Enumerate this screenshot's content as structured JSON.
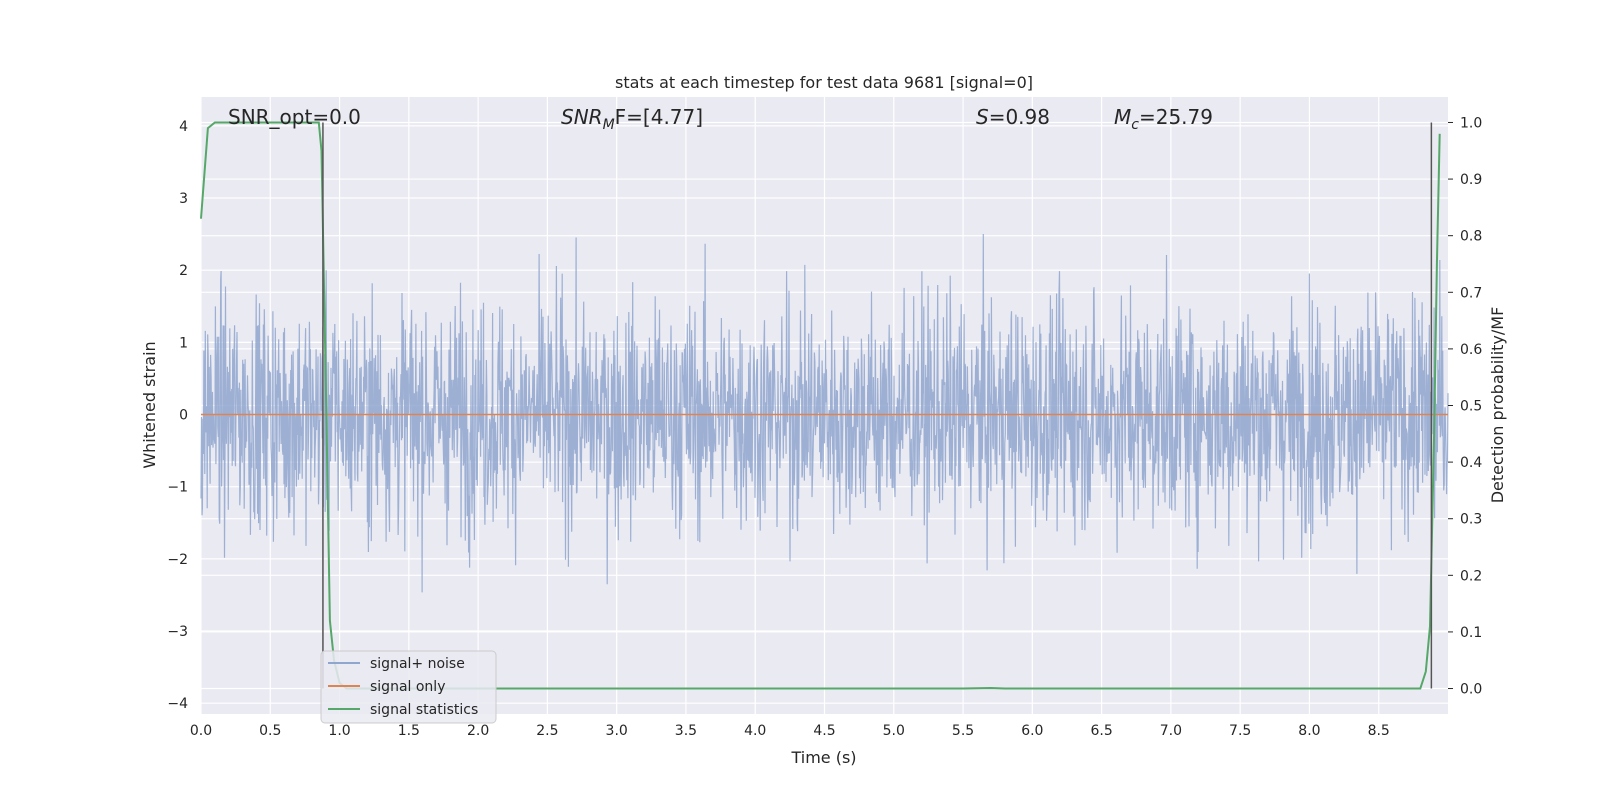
{
  "chart_data": {
    "type": "line",
    "title": "stats at each timestep for test data 9681 [signal=0]",
    "xlabel": "Time (s)",
    "ylabel": "Whitened strain",
    "y2label": "Detection probability/MF",
    "xlim": [
      0.0,
      9.0
    ],
    "ylim": [
      -4.15,
      4.4
    ],
    "y2lim": [
      -0.045,
      1.045
    ],
    "xticks": [
      "0.0",
      "0.5",
      "1.0",
      "1.5",
      "2.0",
      "2.5",
      "3.0",
      "3.5",
      "4.0",
      "4.5",
      "5.0",
      "5.5",
      "6.0",
      "6.5",
      "7.0",
      "7.5",
      "8.0",
      "8.5"
    ],
    "yticks": [
      "4",
      "3",
      "2",
      "1",
      "0",
      "−1",
      "−2",
      "−3",
      "−4"
    ],
    "y2ticks": [
      "1.0",
      "0.9",
      "0.8",
      "0.7",
      "0.6",
      "0.5",
      "0.4",
      "0.3",
      "0.2",
      "0.1",
      "0.0"
    ],
    "annotations": {
      "snr_opt": "SNR_opt=0.0",
      "snr_mf_base": "SNR",
      "snr_mf_sub": "M",
      "snr_mf_rest": "F=[4.77]",
      "s_sym": "S",
      "s_rest": "=0.98",
      "mc_base": "M",
      "mc_sub": "c",
      "mc_rest": "=25.79"
    },
    "legend": {
      "placement": "lower-left",
      "entries": [
        "signal+ noise",
        "signal only",
        "signal statistics"
      ]
    },
    "grid": true,
    "series": [
      {
        "name": "signal+ noise",
        "axis": "left",
        "color": "#8fa6cf",
        "description_only": false,
        "envelope_x": [
          0.0,
          9.0
        ],
        "envelope_upper": [
          2.6,
          2.6
        ],
        "envelope_lower": [
          -2.6,
          -2.6
        ]
      },
      {
        "name": "signal only",
        "axis": "left",
        "color": "#dd8452",
        "x": [
          0.0,
          9.0
        ],
        "y": [
          0.0,
          0.0
        ]
      },
      {
        "name": "signal statistics",
        "axis": "right",
        "color": "#55a868",
        "x": [
          0.0,
          0.05,
          0.1,
          0.2,
          0.3,
          0.5,
          0.7,
          0.85,
          0.87,
          0.9,
          0.93,
          0.96,
          1.0,
          1.05,
          1.2,
          2.0,
          3.0,
          4.0,
          5.0,
          5.5,
          5.7,
          5.8,
          6.0,
          7.0,
          8.0,
          8.8,
          8.84,
          8.87,
          8.9,
          8.92,
          8.94
        ],
        "y": [
          0.83,
          0.99,
          1.0,
          1.0,
          1.0,
          1.0,
          1.0,
          1.0,
          0.95,
          0.55,
          0.12,
          0.05,
          0.01,
          0.0,
          0.0,
          0.0,
          0.0,
          0.0,
          0.0,
          0.0,
          0.001,
          0.0,
          0.0,
          0.0,
          0.0,
          0.0,
          0.03,
          0.11,
          0.45,
          0.75,
          0.98
        ]
      }
    ],
    "vlines": [
      0.88,
      8.88
    ]
  }
}
